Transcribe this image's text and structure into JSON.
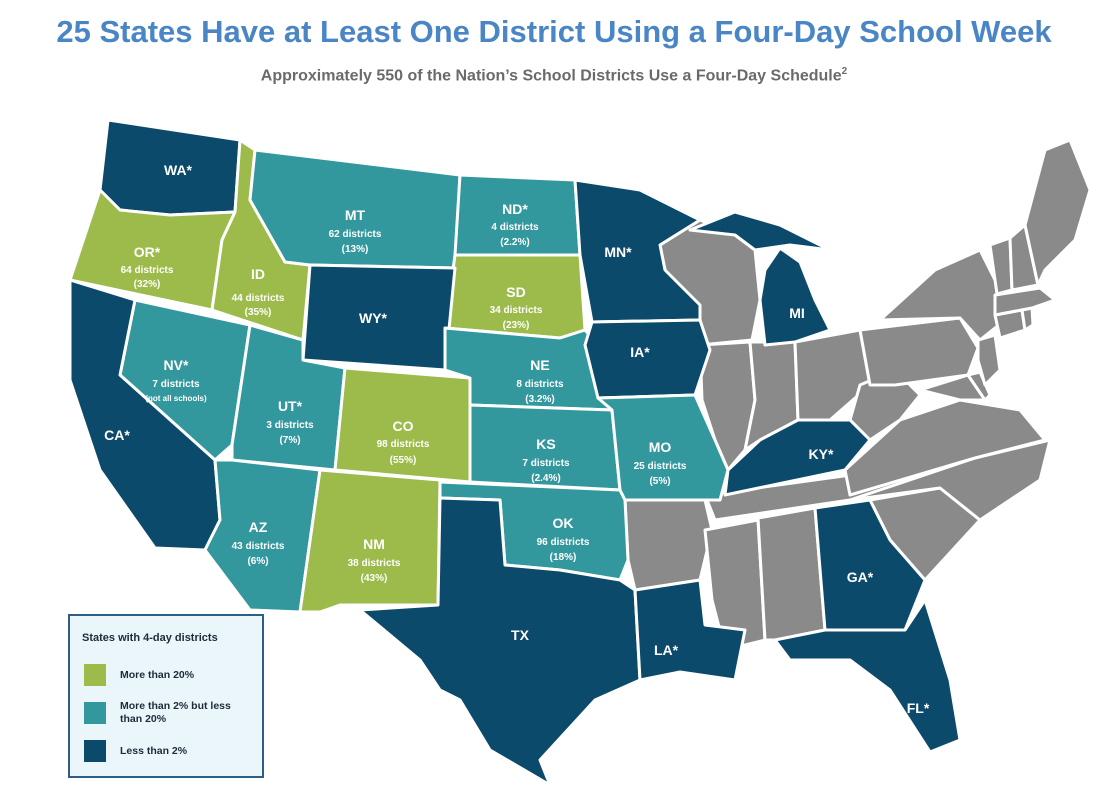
{
  "header": {
    "title": "25 States Have at Least One District Using a Four-Day School Week",
    "subtitle": "Approximately 550 of the Nation’s School Districts Use a Four-Day Schedule",
    "subtitle_note": "2"
  },
  "colors": {
    "high": "#9cbb4a",
    "mid": "#33989e",
    "low": "#0c4a6c",
    "none": "#8a8a8a",
    "title": "#4a86c5"
  },
  "legend": {
    "title": "States with 4-day districts",
    "items": [
      {
        "label": "More than 20%",
        "category": "high"
      },
      {
        "label": "More than 2% but less than 20%",
        "category": "mid"
      },
      {
        "label": "Less than 2%",
        "category": "low"
      }
    ]
  },
  "states": {
    "WA": {
      "label": "WA*",
      "category": "low"
    },
    "OR": {
      "label": "OR*",
      "category": "high",
      "districts": "64 districts",
      "share": "(32%)"
    },
    "ID": {
      "label": "ID",
      "category": "high",
      "districts": "44 districts",
      "share": "(35%)"
    },
    "MT": {
      "label": "MT",
      "category": "mid",
      "districts": "62 districts",
      "share": "(13%)"
    },
    "ND": {
      "label": "ND*",
      "category": "mid",
      "districts": "4 districts",
      "share": "(2.2%)"
    },
    "SD": {
      "label": "SD",
      "category": "high",
      "districts": "34 districts",
      "share": "(23%)"
    },
    "WY": {
      "label": "WY*",
      "category": "low"
    },
    "NV": {
      "label": "NV*",
      "category": "mid",
      "districts": "7 districts",
      "share": "(not all schools)"
    },
    "UT": {
      "label": "UT*",
      "category": "mid",
      "districts": "3 districts",
      "share": "(7%)"
    },
    "CO": {
      "label": "CO",
      "category": "high",
      "districts": "98 districts",
      "share": "(55%)"
    },
    "NE": {
      "label": "NE",
      "category": "mid",
      "districts": "8 districts",
      "share": "(3.2%)"
    },
    "KS": {
      "label": "KS",
      "category": "mid",
      "districts": "7 districts",
      "share": "(2.4%)"
    },
    "CA": {
      "label": "CA*",
      "category": "low"
    },
    "AZ": {
      "label": "AZ",
      "category": "mid",
      "districts": "43 districts",
      "share": "(6%)"
    },
    "NM": {
      "label": "NM",
      "category": "high",
      "districts": "38 districts",
      "share": "(43%)"
    },
    "OK": {
      "label": "OK",
      "category": "mid",
      "districts": "96 districts",
      "share": "(18%)"
    },
    "TX": {
      "label": "TX",
      "category": "low"
    },
    "MN": {
      "label": "MN*",
      "category": "low"
    },
    "IA": {
      "label": "IA*",
      "category": "low"
    },
    "MO": {
      "label": "MO",
      "category": "mid",
      "districts": "25 districts",
      "share": "(5%)"
    },
    "LA": {
      "label": "LA*",
      "category": "low"
    },
    "MI": {
      "label": "MI",
      "category": "low"
    },
    "KY": {
      "label": "KY*",
      "category": "low"
    },
    "GA": {
      "label": "GA*",
      "category": "low"
    },
    "FL": {
      "label": "FL*",
      "category": "low"
    }
  }
}
